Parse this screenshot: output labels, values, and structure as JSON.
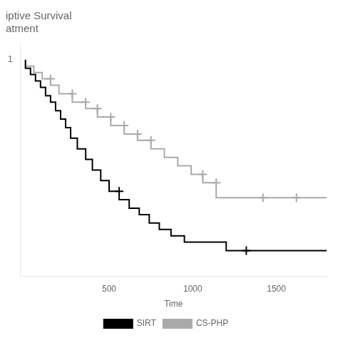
{
  "chart_data": {
    "type": "line",
    "line_style": "step",
    "title": [
      "iptive Survival",
      "atment"
    ],
    "xlabel": "Time",
    "xlim": [
      -30,
      1800
    ],
    "xticks": [
      500,
      1000,
      1500
    ],
    "ylim": [
      -0.02,
      1.08
    ],
    "yticks": [
      1
    ],
    "grid": false,
    "legend": "bottom",
    "series": [
      {
        "name": "SIRT",
        "color": "#000000",
        "marker": "+",
        "x": [
          0,
          30,
          60,
          90,
          120,
          150,
          180,
          210,
          240,
          270,
          310,
          360,
          400,
          450,
          500,
          560,
          620,
          680,
          740,
          800,
          870,
          950,
          1050,
          1200,
          1320,
          1800
        ],
        "values": [
          1.0,
          0.96,
          0.93,
          0.9,
          0.87,
          0.83,
          0.8,
          0.76,
          0.72,
          0.68,
          0.63,
          0.58,
          0.53,
          0.48,
          0.43,
          0.38,
          0.34,
          0.3,
          0.27,
          0.23,
          0.2,
          0.17,
          0.14,
          0.14,
          0.1,
          0.1
        ],
        "censor_x": [
          560,
          1320
        ],
        "censor_values": [
          0.38,
          0.1
        ]
      },
      {
        "name": "CS-PHP",
        "color": "#aaaaaa",
        "marker": "+",
        "x": [
          0,
          50,
          100,
          150,
          200,
          280,
          360,
          430,
          510,
          590,
          670,
          750,
          830,
          910,
          990,
          1060,
          1140,
          1220,
          1420,
          1620,
          1800
        ],
        "values": [
          1.0,
          0.97,
          0.94,
          0.91,
          0.88,
          0.84,
          0.8,
          0.77,
          0.73,
          0.69,
          0.65,
          0.62,
          0.58,
          0.54,
          0.5,
          0.46,
          0.42,
          0.35,
          0.35,
          0.35,
          0.35
        ],
        "censor_x": [
          150,
          280,
          360,
          430,
          510,
          590,
          670,
          750,
          1060,
          1140,
          1420,
          1620
        ],
        "censor_values": [
          0.91,
          0.84,
          0.8,
          0.77,
          0.73,
          0.69,
          0.65,
          0.62,
          0.46,
          0.42,
          0.35,
          0.35
        ]
      }
    ]
  }
}
